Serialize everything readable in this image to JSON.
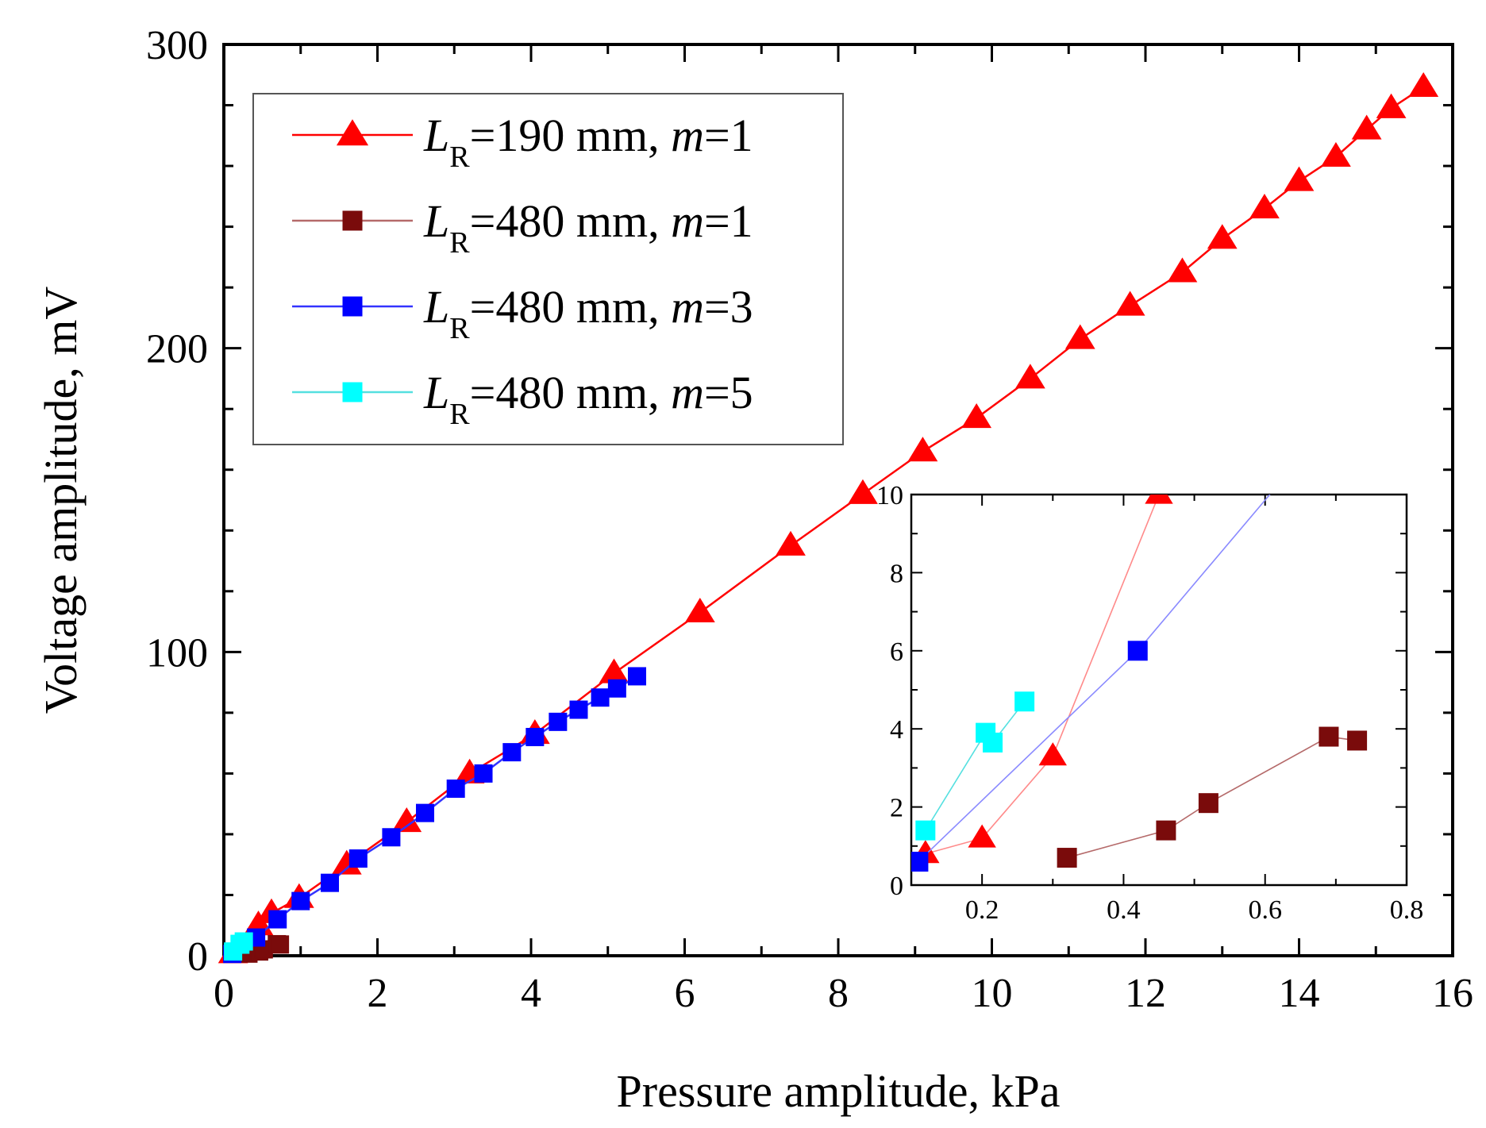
{
  "chart_data": {
    "type": "line",
    "xlabel": "Pressure amplitude, kPa",
    "ylabel": "Voltage amplitude, mV",
    "xlim": [
      0,
      16
    ],
    "ylim": [
      0,
      300
    ],
    "xticks": [
      "0",
      "2",
      "4",
      "6",
      "8",
      "10",
      "12",
      "14",
      "16"
    ],
    "yticks": [
      "0",
      "100",
      "200",
      "300"
    ],
    "series": [
      {
        "name": "L_R=190 mm, m=1",
        "label_base": "=190 mm, ",
        "label_m": "=1",
        "color": "#ff0000",
        "line_color": "#ff0000",
        "marker": "triangle",
        "x": [
          0.12,
          0.2,
          0.3,
          0.45,
          0.62,
          0.98,
          1.6,
          2.38,
          3.2,
          4.05,
          5.08,
          6.2,
          7.38,
          8.32,
          9.1,
          9.8,
          10.5,
          11.15,
          11.8,
          12.48,
          13.0,
          13.55,
          14.0,
          14.48,
          14.88,
          15.2,
          15.62
        ],
        "y": [
          0.8,
          1.2,
          3.3,
          10,
          14,
          19,
          30,
          44,
          60,
          73,
          93,
          113,
          135,
          152,
          166,
          177,
          190,
          203,
          214,
          225,
          236,
          246,
          255,
          263,
          272,
          279,
          286
        ]
      },
      {
        "name": "L_R=480 mm, m=1",
        "label_base": "=480 mm, ",
        "label_m": "=1",
        "color": "#7a0b0b",
        "line_color": "#b56a6a",
        "marker": "square",
        "x": [
          0.32,
          0.46,
          0.52,
          0.69,
          0.73
        ],
        "y": [
          0.7,
          1.4,
          2.1,
          3.8,
          3.7
        ]
      },
      {
        "name": "L_R=480 mm, m=3",
        "label_base": "=480 mm, ",
        "label_m": "=3",
        "color": "#0000ff",
        "line_color": "#3333ff",
        "marker": "square",
        "x": [
          0.11,
          0.42,
          0.7,
          1.0,
          1.38,
          1.75,
          2.18,
          2.62,
          3.02,
          3.38,
          3.75,
          4.05,
          4.35,
          4.62,
          4.9,
          5.12,
          5.38
        ],
        "y": [
          0.6,
          6,
          12,
          18,
          24,
          32,
          39,
          47,
          55,
          60,
          67,
          72,
          77,
          81,
          85,
          88,
          92
        ]
      },
      {
        "name": "L_R=480 mm, m=5",
        "label_base": "=480 mm, ",
        "label_m": "=5",
        "color": "#00ffff",
        "line_color": "#55e0e0",
        "marker": "square",
        "x": [
          0.12,
          0.205,
          0.215,
          0.26
        ],
        "y": [
          1.4,
          3.9,
          3.65,
          4.7
        ]
      }
    ],
    "inset": {
      "xlim": [
        0.1,
        0.8
      ],
      "ylim": [
        0,
        10
      ],
      "xticks": [
        "0.2",
        "0.4",
        "0.6",
        "0.8"
      ],
      "yticks": [
        "0",
        "2",
        "4",
        "6",
        "8",
        "10"
      ]
    },
    "legend": {
      "position": "top-left",
      "symbol_L": "L",
      "symbol_sub": "R",
      "symbol_m": "m"
    }
  }
}
